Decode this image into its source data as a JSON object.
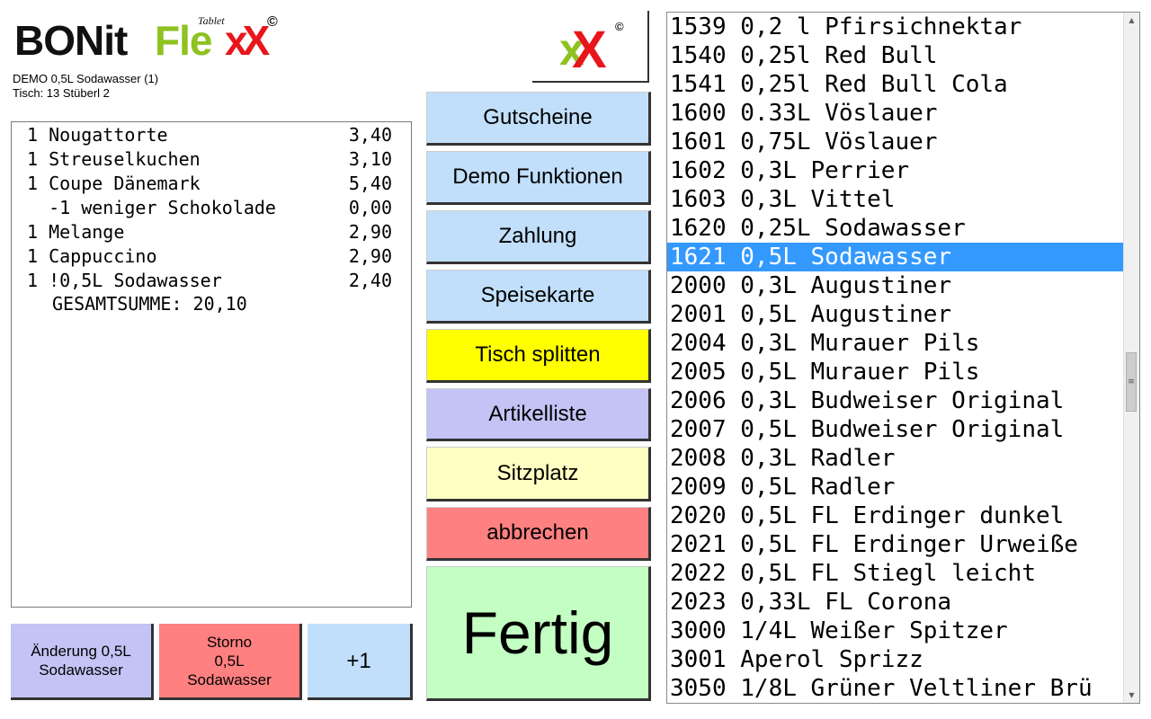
{
  "logo": {
    "bonit": "BONit",
    "flex": "Fle",
    "xx": "xX",
    "tablet": "Tablet",
    "copyright": "©"
  },
  "info": {
    "line1": "DEMO 0,5L Sodawasser (1)",
    "line2": "Tisch: 13 Stüberl 2"
  },
  "receipt": {
    "items": [
      {
        "desc": "1 Nougattorte",
        "price": "3,40"
      },
      {
        "desc": "1 Streuselkuchen",
        "price": "3,10"
      },
      {
        "desc": "1 Coupe Dänemark",
        "price": "5,40"
      },
      {
        "desc": "  -1 weniger Schokolade",
        "price": "0,00"
      },
      {
        "desc": "1 Melange",
        "price": "2,90"
      },
      {
        "desc": "1 Cappuccino",
        "price": "2,90"
      },
      {
        "desc": "1 !0,5L Sodawasser",
        "price": "2,40"
      }
    ],
    "total": "GESAMTSUMME: 20,10"
  },
  "bottom_buttons": {
    "aenderung": "Änderung 0,5L\nSodawasser",
    "storno": "Storno\n0,5L\nSodawasser",
    "plus": "+1"
  },
  "logobox": {
    "x1": "x",
    "x2": "X",
    "copyright": "©"
  },
  "menu": {
    "gutscheine": "Gutscheine",
    "demo": "Demo Funktionen",
    "zahlung": "Zahlung",
    "speisekarte": "Speisekarte",
    "tisch_splitten": "Tisch splitten",
    "artikelliste": "Artikelliste",
    "sitzplatz": "Sitzplatz",
    "abbrechen": "abbrechen",
    "fertig": "Fertig"
  },
  "colors": {
    "blue_button": "#c1dffa",
    "yellow_button": "#ffff00",
    "purple_button": "#c3c3f5",
    "light_yellow_button": "#ffffc3",
    "red_button": "#ff8080",
    "green_button": "#c3ffc3",
    "selection": "#3399ff"
  },
  "articles": [
    "1539 0,2 l Pfirsichnektar",
    "1540 0,25l Red Bull",
    "1541 0,25l Red Bull Cola",
    "1600 0.33L Vöslauer",
    "1601 0,75L Vöslauer",
    "1602 0,3L Perrier",
    "1603 0,3L Vittel",
    "1620 0,25L Sodawasser",
    "1621 0,5L Sodawasser",
    "2000 0,3L Augustiner",
    "2001 0,5L Augustiner",
    "2004 0,3L Murauer Pils",
    "2005 0,5L Murauer Pils",
    "2006 0,3L Budweiser Original",
    "2007 0,5L Budweiser Original",
    "2008 0,3L Radler",
    "2009 0,5L Radler",
    "2020 0,5L FL Erdinger dunkel",
    "2021 0,5L FL Erdinger Urweiße",
    "2022 0,5L FL Stiegl leicht",
    "2023 0,33L FL Corona",
    "3000 1/4L Weißer Spitzer",
    "3001 Aperol Sprizz",
    "3050 1/8L Grüner Veltliner Brü"
  ],
  "selected_article": "1621 0,5L Sodawasser",
  "scrollbar": {
    "up": "▲",
    "down": "▼",
    "grip": "≡"
  }
}
